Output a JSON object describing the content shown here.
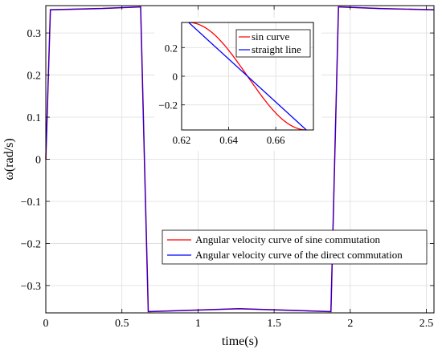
{
  "chart_data": [
    {
      "type": "line",
      "xlabel": "time(s)",
      "ylabel": "ω(rad/s)",
      "xlim": [
        0,
        2.55
      ],
      "ylim": [
        -0.365,
        0.365
      ],
      "grid": true,
      "xticks": [
        0,
        0.5,
        1,
        1.5,
        2,
        2.5
      ],
      "xtick_labels": [
        "0",
        "0.5",
        "1",
        "1.5",
        "2",
        "2.5"
      ],
      "yticks": [
        0.3,
        0.2,
        0.1,
        0,
        -0.1,
        -0.2,
        -0.3
      ],
      "ytick_labels": [
        "0.3",
        "0.2",
        "0.1",
        "0",
        "−0.1",
        "−0.2",
        "−0.3"
      ],
      "legend_position": "lower-right",
      "series": [
        {
          "name": "Angular velocity curve of sine commutation",
          "color": "#ff0000",
          "x": [
            0,
            0.03,
            0.35,
            0.623,
            0.648,
            0.673,
            1.27,
            1.873,
            1.898,
            1.923,
            2.2,
            2.55
          ],
          "y": [
            0,
            0.355,
            0.358,
            0.362,
            0,
            -0.362,
            -0.355,
            -0.362,
            0,
            0.362,
            0.358,
            0.355
          ]
        },
        {
          "name": "Angular velocity curve of the direct commutation",
          "color": "#0000ff",
          "x": [
            0,
            0.03,
            0.35,
            0.623,
            0.648,
            0.673,
            1.27,
            1.873,
            1.898,
            1.923,
            2.2,
            2.55
          ],
          "y": [
            0,
            0.355,
            0.358,
            0.362,
            0,
            -0.362,
            -0.355,
            -0.362,
            0,
            0.362,
            0.358,
            0.355
          ]
        }
      ]
    },
    {
      "type": "line",
      "xlim": [
        0.62,
        0.676
      ],
      "ylim": [
        -0.375,
        0.375
      ],
      "grid": true,
      "xticks": [
        0.62,
        0.64,
        0.66
      ],
      "xtick_labels": [
        "0.62",
        "0.64",
        "0.66"
      ],
      "yticks": [
        0.2,
        0,
        -0.2
      ],
      "ytick_labels": [
        "0.2",
        "0",
        "−0.2"
      ],
      "legend_position": "top-right",
      "series": [
        {
          "name": "sin curve",
          "color": "#ff0000",
          "function": "sine",
          "x_range": [
            0.623,
            0.673
          ],
          "amplitude": 0.375
        },
        {
          "name": "straight line",
          "color": "#0000ff",
          "x": [
            0.623,
            0.673
          ],
          "y": [
            0.375,
            -0.375
          ]
        }
      ]
    }
  ]
}
